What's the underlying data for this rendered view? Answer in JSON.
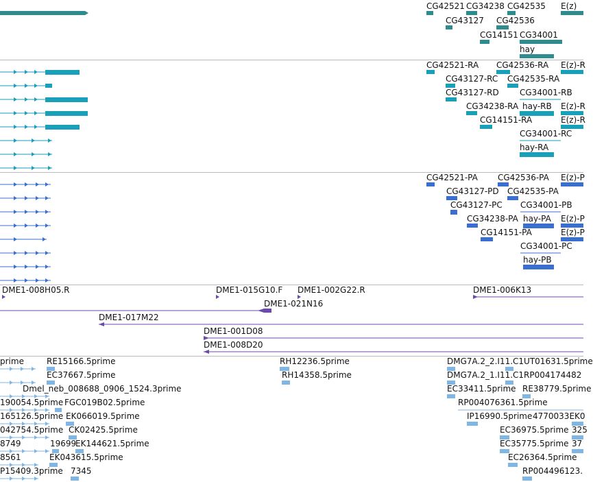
{
  "colors": {
    "gene": "#2e8b8e",
    "transcript": "#1a9fb8",
    "protein": "#3a6fd0",
    "clone": "#6a4ba8",
    "est": "#7fb6e6",
    "divider": "#b9b9b9"
  },
  "tracks": {
    "genes": {
      "labels": [
        "CG42521",
        "CG34238",
        "CG42535",
        "E(z)",
        "CG43127",
        "CG42536",
        "CG14151",
        "CG34001",
        "hay"
      ]
    },
    "transcripts": {
      "labels": [
        "CG42521-RA",
        "CG42536-RA",
        "E(z)-R",
        "CG43127-RC",
        "CG42535-RA",
        "CG43127-RD",
        "CG34001-RB",
        "CG34238-RA",
        "hay-RB",
        "E(z)-R",
        "CG14151-RA",
        "E(z)-R",
        "CG34001-RC",
        "hay-RA"
      ]
    },
    "proteins": {
      "labels": [
        "CG42521-PA",
        "CG42536-PA",
        "E(z)-P",
        "CG43127-PD",
        "CG42535-PA",
        "CG43127-PC",
        "CG34001-PB",
        "CG34238-PA",
        "hay-PA",
        "E(z)-P",
        "CG14151-PA",
        "E(z)-P",
        "CG34001-PC",
        "hay-PB"
      ]
    },
    "clones": {
      "labels": [
        "DME1-008H05.R",
        "DME1-015G10.F",
        "DME1-002G22.R",
        "DME1-006K13",
        "DME1-021N16",
        "DME1-017M22",
        "DME1-001D08",
        "DME1-008D20"
      ]
    },
    "ests": {
      "labels": [
        "prime",
        "RE15166.5prime",
        "RH12236.5prime",
        "DMG7A.2_2.I11.C1UT01631.5prime",
        "EC37667.5prime",
        "RH14358.5prime",
        "DMG7A.2_1.I11.C1RP004174482",
        "Dmel_neb_008688_0906_1524.3prime",
        "EC33411.5prime",
        "RE38779.5prime",
        "190054.5prime",
        "FGC019B02.5prime",
        "RP004076361.5prime",
        "165126.5prime",
        "EK066019.5prime",
        "IP16990.5prime",
        "4770033EK0",
        "042754.5prime",
        "CK02425.5prime",
        "EC36975.5prime",
        "325",
        "8749",
        "19699",
        "EK144621.5prime",
        "EC35775.5prime",
        "37",
        "8561",
        "EK043615.5prime",
        "EC26364.5prime",
        "P15409.3prime",
        "7345",
        "RP004496123."
      ]
    }
  }
}
